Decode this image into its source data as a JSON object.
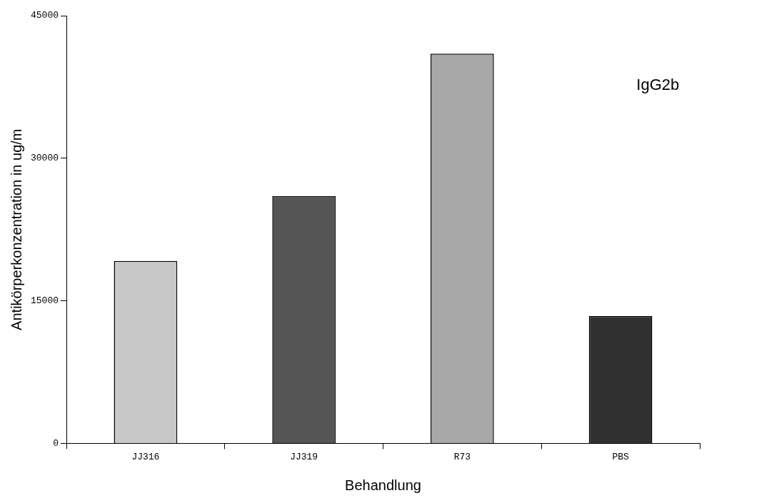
{
  "chart_data": {
    "type": "bar",
    "xlabel": "Behandlung",
    "ylabel": "Antikörperkonzentration in ug/m",
    "categories": [
      "JJ316",
      "JJ319",
      "R73",
      "PBS"
    ],
    "values": [
      19200,
      26000,
      41000,
      13400
    ],
    "colors": [
      "#c8c8c8",
      "#555555",
      "#a8a8a8",
      "#303030"
    ],
    "ylim": [
      0,
      45000
    ],
    "yticks": [
      0,
      15000,
      30000,
      45000
    ],
    "grid": false,
    "legend": false,
    "annotations": [
      "IgG2b"
    ]
  }
}
